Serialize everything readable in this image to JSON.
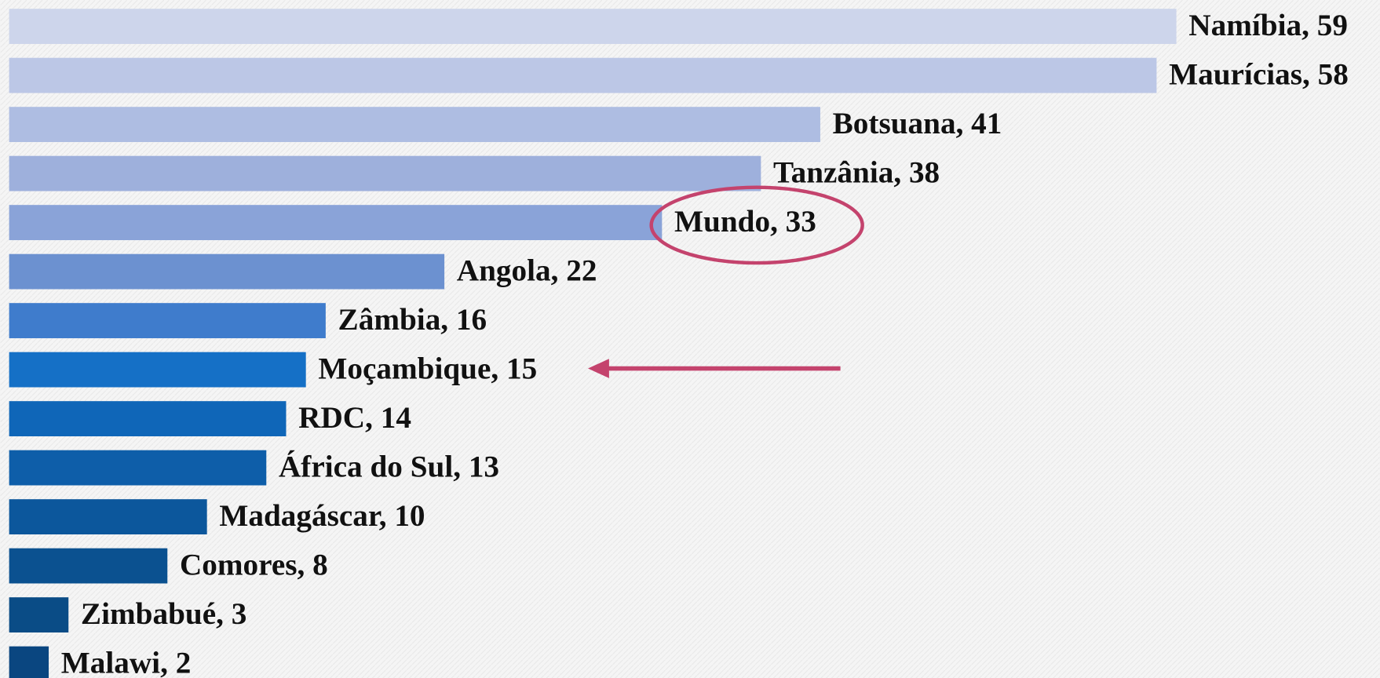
{
  "chart_data": {
    "type": "bar",
    "orientation": "horizontal",
    "categories": [
      "Namíbia",
      "Maurícias",
      "Botsuana",
      "Tanzânia",
      "Mundo",
      "Angola",
      "Zâmbia",
      "Moçambique",
      "RDC",
      "África do Sul",
      "Madagáscar",
      "Comores",
      "Zimbabué",
      "Malawi"
    ],
    "values": [
      59,
      58,
      41,
      38,
      33,
      22,
      16,
      15,
      14,
      13,
      10,
      8,
      3,
      2
    ],
    "value_labels": [
      "Namíbia, 59",
      "Maurícias, 58",
      "Botsuana, 41",
      "Tanzânia, 38",
      "Mundo, 33",
      "Angola, 22",
      "Zâmbia, 16",
      "Moçambique, 15",
      "RDC, 14",
      "África do Sul, 13",
      "Madagáscar, 10",
      "Comores, 8",
      "Zimbabué, 3",
      "Malawi, 2"
    ],
    "colors": [
      "#cdd5eb",
      "#bcc7e6",
      "#aebde2",
      "#9eb0dc",
      "#8aa3d8",
      "#6c91d0",
      "#3f7ccc",
      "#1570c6",
      "#0f66b8",
      "#0e5ea9",
      "#0c579c",
      "#0b5190",
      "#0a4c86",
      "#0a4680"
    ]
  }
}
